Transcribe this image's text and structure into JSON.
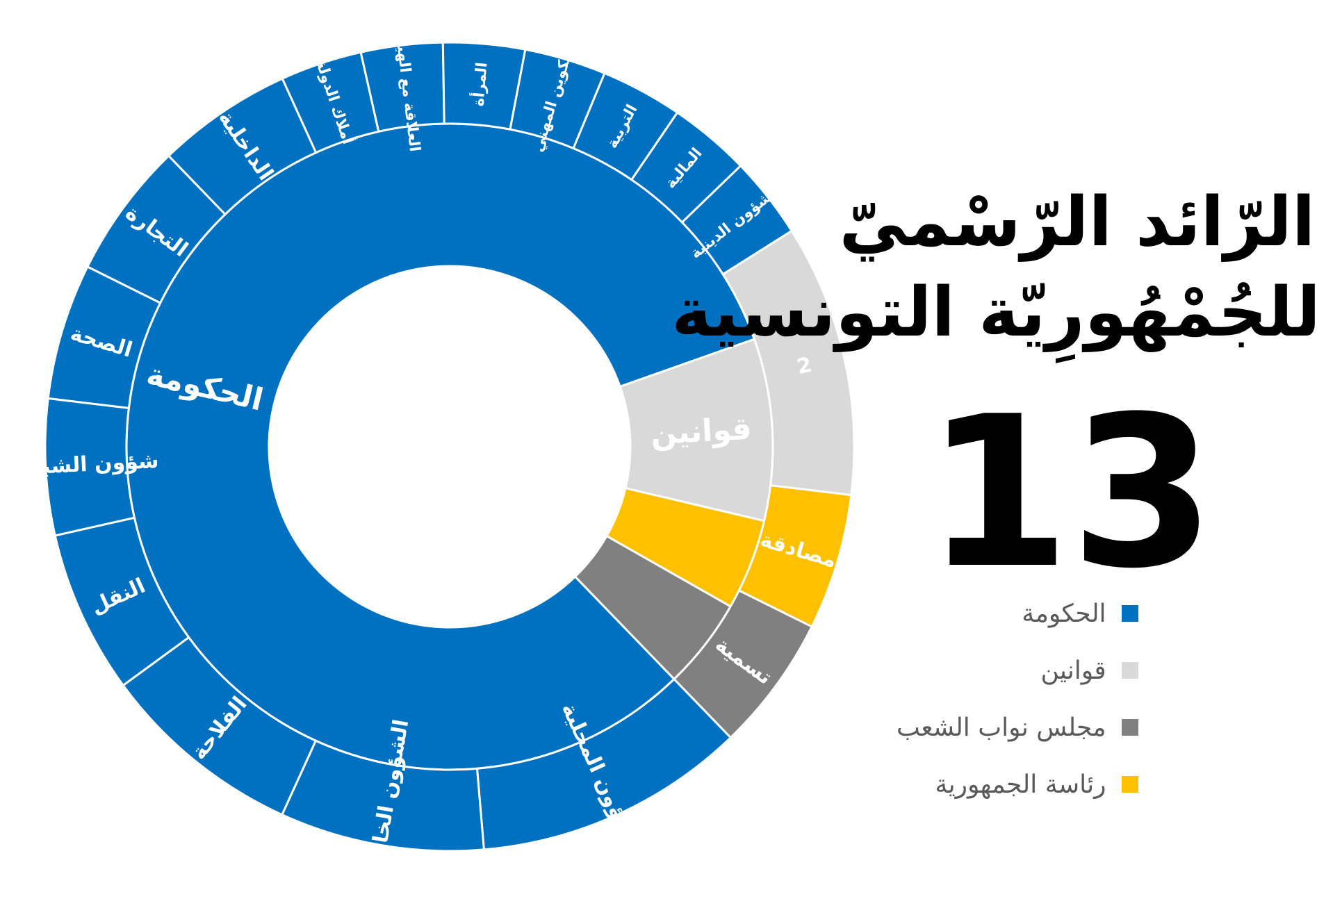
{
  "title_lines": [
    "الرّائد الرّسْميّ",
    "للجُمْهُورِيّة التونسية"
  ],
  "issue_number": "13",
  "legend": [
    {
      "label": "الحكومة",
      "color": "#0070C0"
    },
    {
      "label": "قوانين",
      "color": "#D9D9D9"
    },
    {
      "label": "مجلس نواب الشعب",
      "color": "#808080"
    },
    {
      "label": "رئاسة الجمهورية",
      "color": "#FFC000"
    }
  ],
  "chart_data": {
    "type": "sunburst",
    "inner_ring": [
      {
        "label": "الحكومة",
        "value": 18,
        "color": "#0070C0"
      },
      {
        "label": "قوانين",
        "value": 2,
        "color": "#D9D9D9"
      },
      {
        "label": "",
        "value": 1,
        "color": "#FFC000"
      },
      {
        "label": "",
        "value": 1,
        "color": "#808080"
      }
    ],
    "outer_ring": [
      {
        "label": "الشؤون المحلية",
        "value": 2,
        "color": "#0070C0"
      },
      {
        "label": "الشؤون الخارجية",
        "value": 1.5,
        "color": "#0070C0"
      },
      {
        "label": "الفلاحة",
        "value": 1.5,
        "color": "#0070C0"
      },
      {
        "label": "النقل",
        "value": 1.2,
        "color": "#0070C0"
      },
      {
        "label": "شؤون الشباب",
        "value": 1,
        "color": "#0070C0"
      },
      {
        "label": "الصحة",
        "value": 1,
        "color": "#0070C0"
      },
      {
        "label": "التجارة",
        "value": 1,
        "color": "#0070C0"
      },
      {
        "label": "الداخلية",
        "value": 1,
        "color": "#0070C0"
      },
      {
        "label": "أملاك الدولة",
        "value": 0.6,
        "color": "#0070C0"
      },
      {
        "label": "العلاقة مع الهيئات",
        "value": 0.6,
        "color": "#0070C0"
      },
      {
        "label": "المرأة",
        "value": 0.6,
        "color": "#0070C0"
      },
      {
        "label": "التكوين المهني",
        "value": 0.6,
        "color": "#0070C0"
      },
      {
        "label": "التربية",
        "value": 0.6,
        "color": "#0070C0"
      },
      {
        "label": "المالية",
        "value": 0.6,
        "color": "#0070C0"
      },
      {
        "label": "الشؤون الدينية",
        "value": 0.6,
        "color": "#0070C0"
      },
      {
        "label": "2",
        "value": 2,
        "color": "#D9D9D9"
      },
      {
        "label": "مصادقة",
        "value": 1,
        "color": "#FFC000"
      },
      {
        "label": "تسمية",
        "value": 1,
        "color": "#808080"
      }
    ]
  }
}
